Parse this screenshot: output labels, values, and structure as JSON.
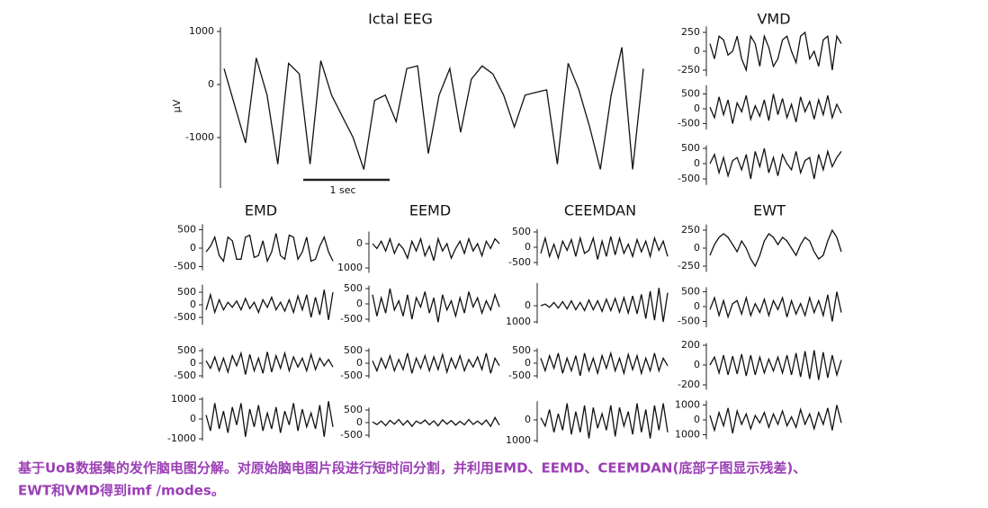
{
  "main": {
    "title": "Ictal EEG",
    "y_label": "µV",
    "scale_bar": "1 sec",
    "yticks": [
      1000,
      0,
      -1000
    ],
    "ylim": [
      -1950,
      1080
    ],
    "values": [
      300,
      -400,
      -1100,
      500,
      -200,
      -1500,
      400,
      200,
      -1500,
      450,
      -200,
      -600,
      -1000,
      -1600,
      -300,
      -200,
      -700,
      300,
      350,
      -1300,
      -200,
      300,
      -900,
      100,
      350,
      200,
      -200,
      -800,
      -200,
      -150,
      -100,
      -1500,
      400,
      -100,
      -800,
      -1600,
      -200,
      700,
      -1600,
      300
    ]
  },
  "groups": [
    {
      "title": "VMD",
      "panels": [
        {
          "yticks": [
            250,
            0,
            -250
          ],
          "ylim": [
            -330,
            330
          ],
          "values": [
            100,
            -100,
            200,
            150,
            -50,
            0,
            200,
            -100,
            -250,
            200,
            100,
            -200,
            200,
            50,
            -200,
            -100,
            150,
            200,
            0,
            -150,
            200,
            250,
            -100,
            0,
            -200,
            150,
            200,
            -250,
            200,
            100
          ]
        },
        {
          "yticks": [
            500,
            0,
            -500
          ],
          "ylim": [
            -700,
            800
          ],
          "values": [
            50,
            -300,
            400,
            -200,
            300,
            -500,
            200,
            -100,
            450,
            -350,
            100,
            -250,
            300,
            -400,
            500,
            -200,
            350,
            -300,
            150,
            -450,
            400,
            -100,
            250,
            -350,
            300,
            -200,
            450,
            -300,
            150,
            -150
          ]
        },
        {
          "yticks": [
            500,
            0,
            -500
          ],
          "ylim": [
            -700,
            600
          ],
          "values": [
            0,
            300,
            -300,
            200,
            -400,
            100,
            200,
            -200,
            300,
            -500,
            400,
            -100,
            500,
            -300,
            200,
            -400,
            300,
            0,
            -200,
            400,
            -300,
            100,
            200,
            -500,
            300,
            -200,
            400,
            -100,
            200,
            400
          ]
        }
      ]
    },
    {
      "title": "EMD",
      "panels": [
        {
          "yticks": [
            500,
            0,
            -500
          ],
          "ylim": [
            -600,
            650
          ],
          "values": [
            -100,
            50,
            300,
            -200,
            -350,
            300,
            200,
            -300,
            -300,
            300,
            350,
            -250,
            -200,
            200,
            -350,
            -100,
            400,
            -200,
            -300,
            350,
            300,
            -300,
            -100,
            300,
            -350,
            -300,
            50,
            300,
            -100,
            -350
          ]
        },
        {
          "yticks": [
            500,
            0,
            -500
          ],
          "ylim": [
            -800,
            800
          ],
          "values": [
            -200,
            400,
            -300,
            200,
            -200,
            100,
            -100,
            150,
            -200,
            250,
            -150,
            100,
            -300,
            200,
            -100,
            300,
            -200,
            100,
            -250,
            200,
            -300,
            350,
            -200,
            400,
            -500,
            300,
            -400,
            600,
            -600,
            500
          ]
        },
        {
          "yticks": [
            500,
            0,
            -500
          ],
          "ylim": [
            -600,
            600
          ],
          "values": [
            100,
            -200,
            250,
            -300,
            200,
            -350,
            300,
            -100,
            400,
            -450,
            350,
            -300,
            200,
            -400,
            450,
            -350,
            300,
            -200,
            400,
            -300,
            250,
            -150,
            200,
            -300,
            350,
            -250,
            200,
            -100,
            150,
            -150
          ]
        },
        {
          "yticks": [
            1000,
            0,
            -1000
          ],
          "ylim": [
            -1100,
            1100
          ],
          "values": [
            200,
            -600,
            800,
            -500,
            400,
            -700,
            600,
            -300,
            800,
            -900,
            500,
            -400,
            700,
            -600,
            300,
            -500,
            600,
            -700,
            400,
            -300,
            800,
            -600,
            500,
            -400,
            300,
            -500,
            700,
            -900,
            900,
            -400
          ]
        }
      ]
    },
    {
      "title": "EEMD",
      "panels": [
        {
          "yticks": [
            0,
            {
              "value": -1000,
              "label": "1000"
            }
          ],
          "ylim": [
            -1200,
            500
          ],
          "values": [
            0,
            -200,
            100,
            -300,
            200,
            -400,
            0,
            -200,
            -600,
            100,
            -300,
            200,
            -500,
            -100,
            -700,
            200,
            -300,
            0,
            -600,
            -200,
            100,
            -400,
            200,
            -300,
            0,
            -500,
            100,
            -200,
            200,
            0
          ]
        },
        {
          "yticks": [
            500,
            0,
            -500
          ],
          "ylim": [
            -600,
            600
          ],
          "values": [
            300,
            -400,
            200,
            -300,
            500,
            -200,
            100,
            -400,
            300,
            -500,
            200,
            -100,
            400,
            -300,
            200,
            -600,
            300,
            -200,
            100,
            -400,
            200,
            -300,
            400,
            -100,
            200,
            -300,
            100,
            -200,
            300,
            -100
          ]
        },
        {
          "yticks": [
            500,
            0,
            -500
          ],
          "ylim": [
            -600,
            600
          ],
          "values": [
            100,
            -300,
            200,
            -200,
            300,
            -300,
            150,
            -250,
            400,
            -400,
            200,
            -200,
            300,
            -300,
            250,
            -250,
            350,
            -350,
            200,
            -200,
            300,
            -300,
            150,
            -150,
            250,
            -250,
            400,
            -400,
            200,
            -100
          ]
        },
        {
          "yticks": [
            500,
            0,
            -500
          ],
          "ylim": [
            -600,
            600
          ],
          "values": [
            30,
            -80,
            60,
            -120,
            90,
            -60,
            120,
            -100,
            80,
            -150,
            60,
            -40,
            100,
            -90,
            70,
            -130,
            110,
            -60,
            80,
            -100,
            50,
            -90,
            120,
            -70,
            60,
            -80,
            100,
            -150,
            200,
            -100
          ]
        }
      ]
    },
    {
      "title": "CEEMDAN",
      "panels": [
        {
          "yticks": [
            500,
            0,
            -500
          ],
          "ylim": [
            -600,
            600
          ],
          "values": [
            -200,
            300,
            -300,
            100,
            -350,
            200,
            -100,
            250,
            -300,
            300,
            -200,
            -100,
            300,
            -400,
            200,
            -300,
            350,
            -250,
            300,
            -200,
            100,
            -300,
            250,
            -150,
            200,
            -300,
            300,
            -100,
            200,
            -300
          ]
        },
        {
          "yticks": [
            0,
            {
              "value": -1000,
              "label": "1000"
            }
          ],
          "ylim": [
            -1100,
            1400
          ],
          "values": [
            0,
            100,
            -100,
            200,
            -150,
            250,
            -200,
            300,
            -250,
            200,
            -300,
            350,
            -250,
            300,
            -350,
            400,
            -300,
            450,
            -400,
            500,
            -450,
            600,
            -500,
            700,
            -800,
            900,
            -900,
            1100,
            -1000,
            800
          ]
        },
        {
          "yticks": [
            500,
            0,
            -500
          ],
          "ylim": [
            -600,
            600
          ],
          "values": [
            200,
            -300,
            300,
            -200,
            400,
            -400,
            200,
            -300,
            300,
            -500,
            400,
            -300,
            200,
            -400,
            300,
            -200,
            400,
            -300,
            200,
            -400,
            350,
            -250,
            300,
            -400,
            200,
            -300,
            400,
            -300,
            200,
            -100
          ]
        },
        {
          "yticks": [
            0,
            {
              "value": -1000,
              "label": "1000"
            }
          ],
          "ylim": [
            -1100,
            900
          ],
          "values": [
            100,
            -300,
            500,
            -600,
            300,
            -500,
            800,
            -700,
            400,
            -600,
            700,
            -900,
            600,
            -400,
            300,
            -500,
            700,
            -800,
            600,
            -300,
            400,
            -700,
            800,
            -600,
            500,
            -900,
            700,
            -500,
            800,
            -600
          ]
        }
      ]
    },
    {
      "title": "EWT",
      "panels": [
        {
          "yticks": [
            250,
            0,
            -250
          ],
          "ylim": [
            -330,
            330
          ],
          "values": [
            -100,
            50,
            150,
            200,
            150,
            50,
            -50,
            100,
            0,
            -150,
            -250,
            -100,
            100,
            200,
            150,
            50,
            150,
            100,
            0,
            -100,
            50,
            150,
            100,
            -50,
            -150,
            -100,
            100,
            250,
            150,
            -50
          ]
        },
        {
          "yticks": [
            500,
            0,
            -500
          ],
          "ylim": [
            -700,
            650
          ],
          "values": [
            -100,
            300,
            -300,
            200,
            -350,
            100,
            200,
            -250,
            300,
            -300,
            100,
            -200,
            250,
            -300,
            200,
            -100,
            300,
            -350,
            200,
            -250,
            100,
            -300,
            300,
            -200,
            200,
            -300,
            400,
            -500,
            500,
            -200
          ]
        },
        {
          "yticks": [
            200,
            0,
            -200
          ],
          "ylim": [
            -250,
            220
          ],
          "values": [
            0,
            80,
            -80,
            100,
            -100,
            90,
            -90,
            110,
            -110,
            100,
            -100,
            80,
            -80,
            60,
            -60,
            80,
            -80,
            100,
            -100,
            120,
            -120,
            140,
            -140,
            150,
            -150,
            130,
            -130,
            100,
            -100,
            50
          ]
        },
        {
          "yticks": [
            1000,
            0,
            {
              "value": -1000,
              "label": "1000"
            }
          ],
          "ylim": [
            -1300,
            1300
          ],
          "values": [
            300,
            -700,
            500,
            -400,
            800,
            -900,
            600,
            -300,
            400,
            -600,
            300,
            -200,
            500,
            -500,
            400,
            -300,
            600,
            -400,
            200,
            -500,
            700,
            -300,
            400,
            -600,
            500,
            -300,
            800,
            -700,
            1000,
            -200
          ]
        }
      ]
    }
  ],
  "caption": [
    "基于UoB数据集的发作脑电图分解。对原始脑电图片段进行短时间分割，并利用EMD、EEMD、CEEMDAN(底部子图显示残差)、",
    "EWT和VMD得到imf /modes。"
  ]
}
